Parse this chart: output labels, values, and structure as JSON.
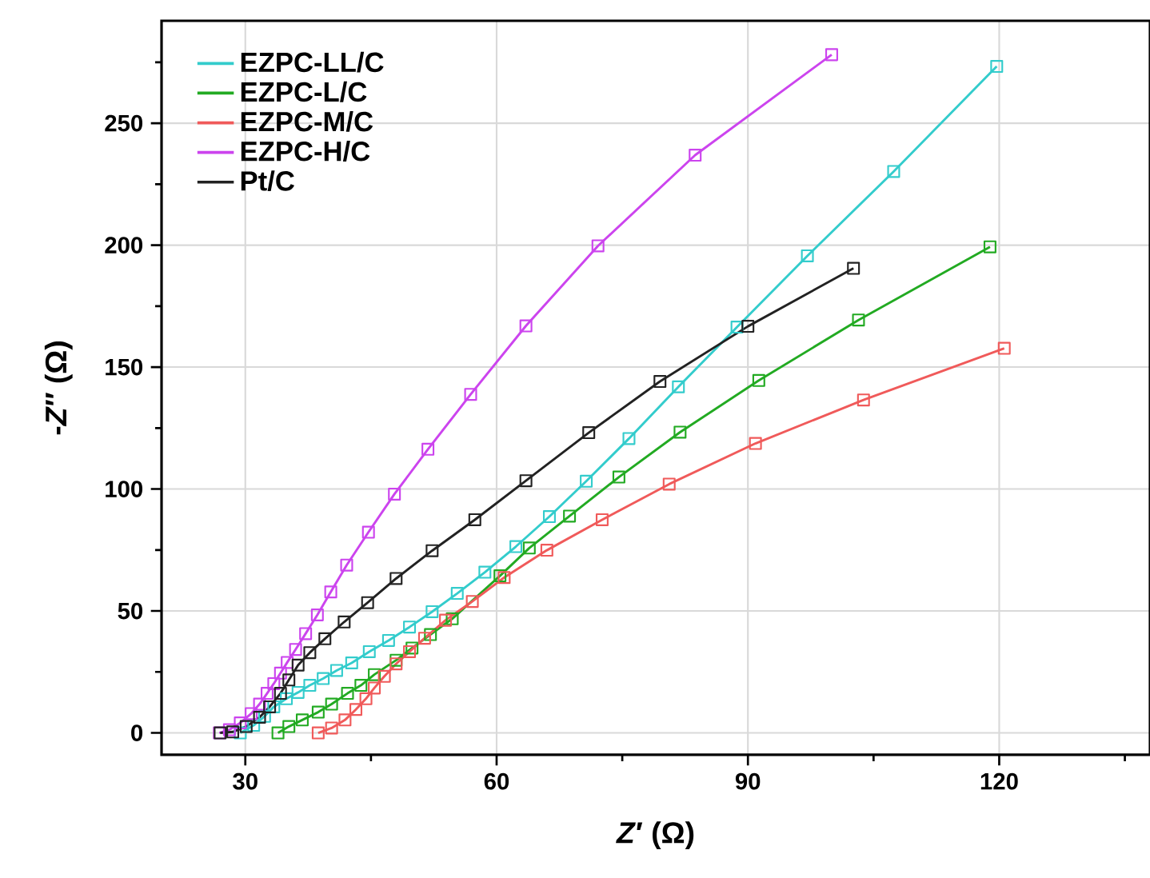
{
  "chart_data": {
    "type": "line",
    "xlabel": "*Z*′ (Ω)",
    "ylabel": "-*Z*″ (Ω)",
    "xlim": [
      20,
      138
    ],
    "ylim": [
      -9,
      292
    ],
    "xticks": [
      30,
      {
        "value": 45,
        "label": null
      },
      60,
      {
        "value": 75,
        "label": null
      },
      90,
      {
        "value": 105,
        "label": null
      },
      120,
      {
        "value": 135,
        "label": null
      }
    ],
    "yticks": [
      0,
      {
        "value": 25,
        "label": null
      },
      50,
      {
        "value": 75,
        "label": null
      },
      100,
      {
        "value": 125,
        "label": null
      },
      150,
      {
        "value": 175,
        "label": null
      },
      200,
      {
        "value": 225,
        "label": null
      },
      250,
      {
        "value": 275,
        "label": null
      }
    ],
    "grid": true,
    "legend": "top left",
    "marker": "square",
    "line_style": "solid",
    "series": [
      {
        "name": "EZPC-LL/C",
        "color": "#33cccc",
        "x": [
          29.4,
          31.0,
          32.3,
          33.4,
          34.9,
          36.3,
          37.7,
          39.3,
          40.9,
          42.7,
          44.8,
          47.1,
          49.6,
          52.3,
          55.3,
          58.6,
          62.3,
          66.3,
          70.7,
          75.8,
          81.7,
          88.7,
          97.1,
          107.4,
          119.7
        ],
        "values": [
          0,
          3.1,
          6.8,
          10.7,
          14.0,
          16.6,
          19.5,
          22.3,
          25.6,
          28.7,
          33.3,
          37.9,
          43.4,
          49.7,
          57.2,
          65.9,
          76.4,
          88.7,
          103.2,
          120.7,
          141.9,
          166.4,
          195.6,
          230.2,
          273.3
        ]
      },
      {
        "name": "EZPC-L/C",
        "color": "#22aa22",
        "x": [
          33.9,
          35.2,
          36.8,
          38.7,
          40.3,
          42.2,
          43.8,
          45.4,
          48.0,
          49.9,
          52.1,
          54.7,
          60.4,
          63.9,
          68.7,
          74.6,
          81.9,
          91.3,
          103.2,
          118.9
        ],
        "values": [
          0,
          2.6,
          5.3,
          8.5,
          11.8,
          16.2,
          19.5,
          23.9,
          29.8,
          34.8,
          40.3,
          46.8,
          64.4,
          75.8,
          88.9,
          104.9,
          123.3,
          144.5,
          169.3,
          199.3
        ]
      },
      {
        "name": "EZPC-M/C",
        "color": "#f05a5a",
        "x": [
          38.7,
          40.3,
          41.9,
          43.2,
          44.4,
          45.4,
          46.6,
          48.0,
          49.6,
          51.4,
          53.9,
          57.1,
          60.9,
          66.0,
          72.6,
          80.6,
          90.9,
          103.8,
          120.6
        ],
        "values": [
          0,
          2.0,
          5.3,
          9.6,
          14.0,
          18.4,
          23.2,
          28.3,
          33.3,
          38.8,
          46.2,
          53.9,
          63.7,
          74.9,
          87.4,
          102.0,
          118.7,
          136.5,
          157.7
        ]
      },
      {
        "name": "EZPC-H/C",
        "color": "#cc44ee",
        "x": [
          26.9,
          28.1,
          29.4,
          30.7,
          31.7,
          32.6,
          33.4,
          34.2,
          35.0,
          36.0,
          37.2,
          38.6,
          40.2,
          42.1,
          44.7,
          47.8,
          51.8,
          56.9,
          63.5,
          72.1,
          83.7,
          100.0
        ],
        "values": [
          0,
          1.3,
          4.1,
          7.9,
          11.8,
          16.2,
          20.2,
          24.5,
          28.9,
          34.2,
          40.7,
          48.4,
          57.8,
          68.8,
          82.3,
          97.9,
          116.3,
          138.8,
          166.9,
          199.7,
          236.9,
          278.1
        ]
      },
      {
        "name": "Pt/C",
        "color": "#222222",
        "x": [
          27.0,
          28.5,
          30.1,
          31.7,
          32.9,
          34.2,
          35.2,
          36.3,
          37.7,
          39.5,
          41.8,
          44.6,
          48.0,
          52.3,
          57.4,
          63.5,
          71.0,
          79.5,
          90.0,
          102.6
        ],
        "values": [
          0,
          0.4,
          2.6,
          6.4,
          10.7,
          16.2,
          21.7,
          27.8,
          32.9,
          38.6,
          45.5,
          53.4,
          63.3,
          74.7,
          87.4,
          103.4,
          123.1,
          144.1,
          166.7,
          190.5
        ]
      }
    ]
  }
}
